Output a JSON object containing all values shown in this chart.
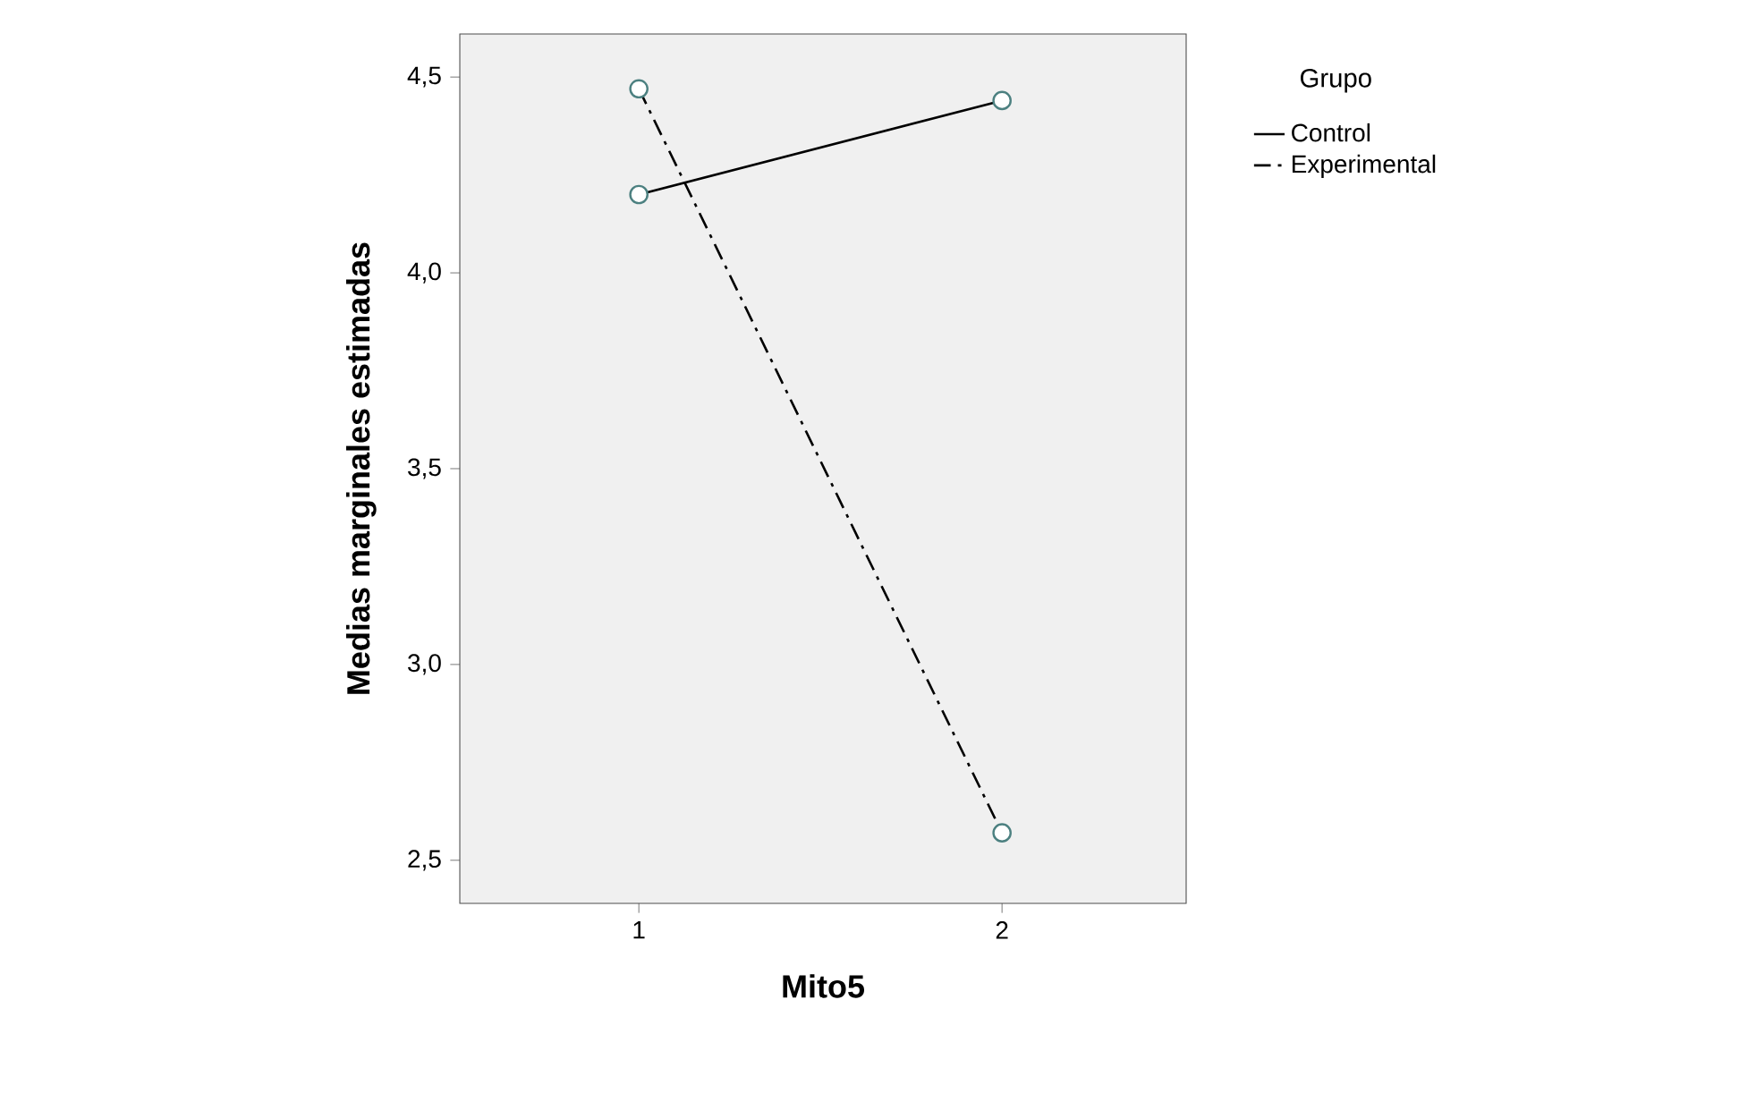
{
  "chart_data": {
    "type": "line",
    "xlabel": "Mito5",
    "ylabel": "Medias marginales estimadas",
    "legend_title": "Grupo",
    "legend": "top right",
    "marker": "circle",
    "grid": false,
    "categories": [
      "1",
      "2"
    ],
    "ylim": [
      2.39,
      4.61
    ],
    "yticks": [
      {
        "value": 2.5,
        "label": "2,5"
      },
      {
        "value": 3.0,
        "label": "3,0"
      },
      {
        "value": 3.5,
        "label": "3,5"
      },
      {
        "value": 4.0,
        "label": "4,0"
      },
      {
        "value": 4.5,
        "label": "4,5"
      }
    ],
    "series": [
      {
        "name": "Control",
        "color": "#000000",
        "line_style": "solid",
        "values": [
          4.2,
          4.44
        ]
      },
      {
        "name": "Experimental",
        "color": "#000000",
        "line_style": "dashdot",
        "values": [
          4.47,
          2.57
        ]
      }
    ]
  }
}
